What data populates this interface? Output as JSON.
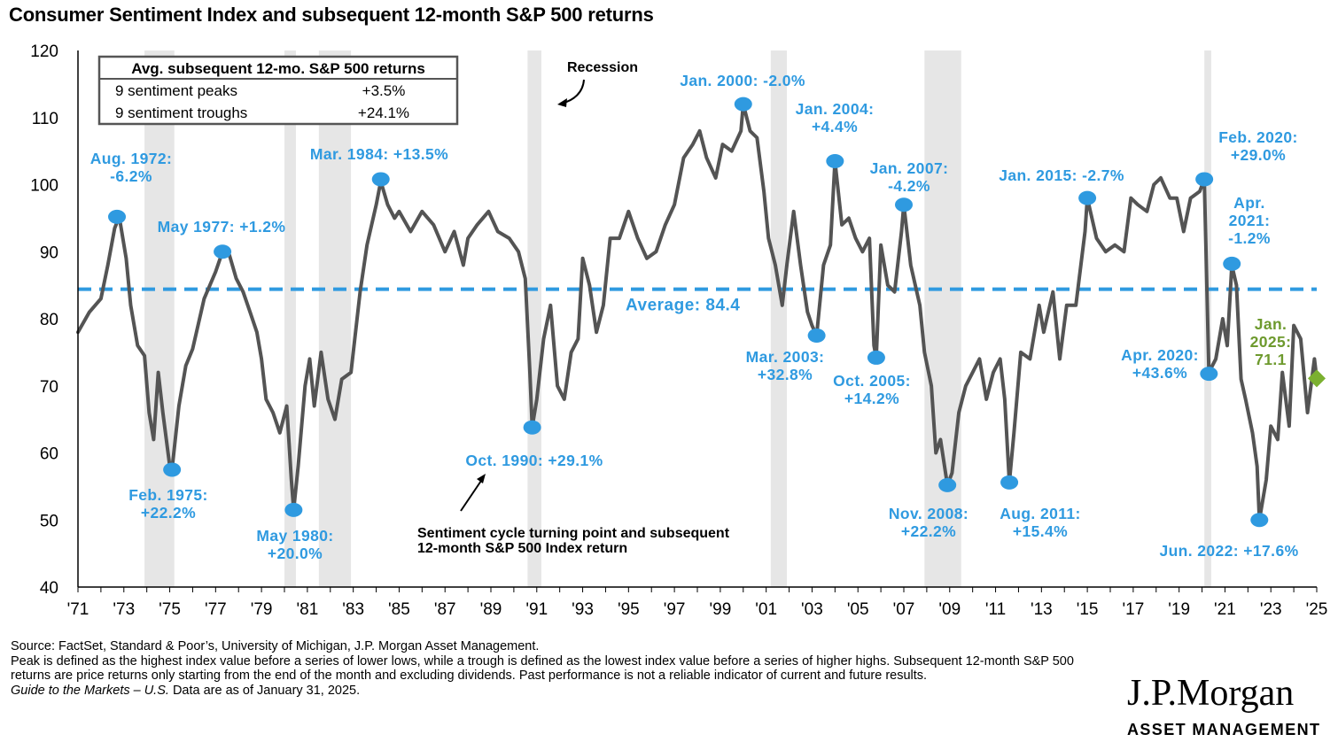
{
  "chart_data": {
    "type": "line",
    "title": "Consumer Sentiment Index and subsequent 12-month S&P 500 returns",
    "ylim": [
      40,
      120
    ],
    "yticks": [
      40,
      50,
      60,
      70,
      80,
      90,
      100,
      110,
      120
    ],
    "xlim": [
      1971.0,
      2025.0
    ],
    "xticks": [
      {
        "year": 1971,
        "label": "'71"
      },
      {
        "year": 1973,
        "label": "'73"
      },
      {
        "year": 1975,
        "label": "'75"
      },
      {
        "year": 1977,
        "label": "'77"
      },
      {
        "year": 1979,
        "label": "'79"
      },
      {
        "year": 1981,
        "label": "'81"
      },
      {
        "year": 1983,
        "label": "'83"
      },
      {
        "year": 1985,
        "label": "'85"
      },
      {
        "year": 1987,
        "label": "'87"
      },
      {
        "year": 1989,
        "label": "'89"
      },
      {
        "year": 1991,
        "label": "'91"
      },
      {
        "year": 1993,
        "label": "'93"
      },
      {
        "year": 1995,
        "label": "'95"
      },
      {
        "year": 1997,
        "label": "'97"
      },
      {
        "year": 1999,
        "label": "'99"
      },
      {
        "year": 2001,
        "label": "'01"
      },
      {
        "year": 2003,
        "label": "'03"
      },
      {
        "year": 2005,
        "label": "'05"
      },
      {
        "year": 2007,
        "label": "'07"
      },
      {
        "year": 2009,
        "label": "'09"
      },
      {
        "year": 2011,
        "label": "'11"
      },
      {
        "year": 2013,
        "label": "'13"
      },
      {
        "year": 2015,
        "label": "'15"
      },
      {
        "year": 2017,
        "label": "'17"
      },
      {
        "year": 2019,
        "label": "'19"
      },
      {
        "year": 2021,
        "label": "'21"
      },
      {
        "year": 2023,
        "label": "'23"
      },
      {
        "year": 2025,
        "label": "'25"
      }
    ],
    "average": 84.4,
    "average_label": "Average: 84.4",
    "recessions": [
      [
        1973.9,
        1975.2
      ],
      [
        1980.0,
        1980.5
      ],
      [
        1981.5,
        1982.9
      ],
      [
        1990.6,
        1991.2
      ],
      [
        2001.2,
        2001.9
      ],
      [
        2007.9,
        2009.5
      ],
      [
        2020.1,
        2020.4
      ]
    ],
    "series": [
      {
        "name": "Consumer Sentiment Index",
        "color": "#545454",
        "points": [
          [
            1971.0,
            78.0
          ],
          [
            1971.5,
            81.0
          ],
          [
            1972.0,
            83.0
          ],
          [
            1972.3,
            88.0
          ],
          [
            1972.6,
            93.5
          ],
          [
            1972.8,
            95.2
          ],
          [
            1973.1,
            89.0
          ],
          [
            1973.3,
            82.0
          ],
          [
            1973.6,
            76.0
          ],
          [
            1973.9,
            74.5
          ],
          [
            1974.1,
            66.0
          ],
          [
            1974.3,
            62.0
          ],
          [
            1974.5,
            72.0
          ],
          [
            1974.7,
            66.0
          ],
          [
            1975.0,
            58.0
          ],
          [
            1975.1,
            57.5
          ],
          [
            1975.4,
            67.0
          ],
          [
            1975.7,
            73.0
          ],
          [
            1976.0,
            75.5
          ],
          [
            1976.5,
            83.0
          ],
          [
            1977.0,
            87.0
          ],
          [
            1977.3,
            90.0
          ],
          [
            1977.6,
            89.5
          ],
          [
            1977.9,
            86.0
          ],
          [
            1978.2,
            84.0
          ],
          [
            1978.5,
            81.0
          ],
          [
            1978.8,
            78.0
          ],
          [
            1979.0,
            74.0
          ],
          [
            1979.2,
            68.0
          ],
          [
            1979.5,
            66.0
          ],
          [
            1979.8,
            63.0
          ],
          [
            1980.1,
            67.0
          ],
          [
            1980.3,
            56.0
          ],
          [
            1980.4,
            51.5
          ],
          [
            1980.6,
            58.0
          ],
          [
            1980.9,
            70.0
          ],
          [
            1981.1,
            74.0
          ],
          [
            1981.3,
            67.0
          ],
          [
            1981.6,
            75.0
          ],
          [
            1981.9,
            68.0
          ],
          [
            1982.2,
            65.0
          ],
          [
            1982.5,
            71.0
          ],
          [
            1982.9,
            72.0
          ],
          [
            1983.3,
            84.0
          ],
          [
            1983.6,
            91.0
          ],
          [
            1984.0,
            97.0
          ],
          [
            1984.2,
            100.5
          ],
          [
            1984.5,
            97.0
          ],
          [
            1984.8,
            95.0
          ],
          [
            1985.0,
            96.0
          ],
          [
            1985.5,
            93.0
          ],
          [
            1986.0,
            96.0
          ],
          [
            1986.5,
            94.0
          ],
          [
            1987.0,
            90.0
          ],
          [
            1987.4,
            93.0
          ],
          [
            1987.8,
            88.0
          ],
          [
            1988.0,
            92.0
          ],
          [
            1988.4,
            94.0
          ],
          [
            1988.9,
            96.0
          ],
          [
            1989.3,
            93.0
          ],
          [
            1989.8,
            92.0
          ],
          [
            1990.2,
            90.0
          ],
          [
            1990.5,
            86.0
          ],
          [
            1990.7,
            72.0
          ],
          [
            1990.8,
            63.8
          ],
          [
            1991.0,
            68.0
          ],
          [
            1991.3,
            77.0
          ],
          [
            1991.6,
            82.0
          ],
          [
            1991.9,
            70.0
          ],
          [
            1992.2,
            68.0
          ],
          [
            1992.5,
            75.0
          ],
          [
            1992.8,
            77.0
          ],
          [
            1993.0,
            89.0
          ],
          [
            1993.3,
            85.0
          ],
          [
            1993.6,
            78.0
          ],
          [
            1993.9,
            82.0
          ],
          [
            1994.2,
            92.0
          ],
          [
            1994.6,
            92.0
          ],
          [
            1995.0,
            96.0
          ],
          [
            1995.4,
            92.0
          ],
          [
            1995.8,
            89.0
          ],
          [
            1996.2,
            90.0
          ],
          [
            1996.6,
            94.0
          ],
          [
            1997.0,
            97.0
          ],
          [
            1997.4,
            104.0
          ],
          [
            1997.8,
            106.0
          ],
          [
            1998.1,
            108.0
          ],
          [
            1998.4,
            104.0
          ],
          [
            1998.8,
            101.0
          ],
          [
            1999.1,
            106.0
          ],
          [
            1999.5,
            105.0
          ],
          [
            1999.9,
            108.0
          ],
          [
            2000.0,
            112.0
          ],
          [
            2000.3,
            108.0
          ],
          [
            2000.6,
            107.0
          ],
          [
            2000.9,
            99.0
          ],
          [
            2001.1,
            92.0
          ],
          [
            2001.4,
            88.0
          ],
          [
            2001.7,
            82.0
          ],
          [
            2001.9,
            88.0
          ],
          [
            2002.2,
            96.0
          ],
          [
            2002.5,
            88.0
          ],
          [
            2002.8,
            81.0
          ],
          [
            2003.0,
            79.0
          ],
          [
            2003.2,
            77.5
          ],
          [
            2003.5,
            88.0
          ],
          [
            2003.8,
            91.0
          ],
          [
            2004.0,
            103.5
          ],
          [
            2004.3,
            94.0
          ],
          [
            2004.6,
            95.0
          ],
          [
            2004.9,
            92.0
          ],
          [
            2005.2,
            90.0
          ],
          [
            2005.5,
            92.0
          ],
          [
            2005.7,
            76.0
          ],
          [
            2005.8,
            74.2
          ],
          [
            2006.0,
            91.0
          ],
          [
            2006.3,
            85.0
          ],
          [
            2006.6,
            84.0
          ],
          [
            2006.9,
            93.0
          ],
          [
            2007.0,
            97.0
          ],
          [
            2007.3,
            88.0
          ],
          [
            2007.7,
            82.0
          ],
          [
            2007.9,
            75.0
          ],
          [
            2008.2,
            70.0
          ],
          [
            2008.4,
            60.0
          ],
          [
            2008.6,
            62.0
          ],
          [
            2008.9,
            55.2
          ],
          [
            2009.1,
            57.0
          ],
          [
            2009.4,
            66.0
          ],
          [
            2009.7,
            70.0
          ],
          [
            2010.0,
            72.0
          ],
          [
            2010.3,
            74.0
          ],
          [
            2010.6,
            68.0
          ],
          [
            2010.9,
            72.0
          ],
          [
            2011.2,
            74.0
          ],
          [
            2011.4,
            68.0
          ],
          [
            2011.6,
            55.6
          ],
          [
            2011.8,
            63.0
          ],
          [
            2012.1,
            75.0
          ],
          [
            2012.5,
            74.0
          ],
          [
            2012.9,
            82.0
          ],
          [
            2013.1,
            78.0
          ],
          [
            2013.5,
            84.0
          ],
          [
            2013.8,
            74.0
          ],
          [
            2014.1,
            82.0
          ],
          [
            2014.5,
            82.0
          ],
          [
            2014.9,
            93.0
          ],
          [
            2015.0,
            98.0
          ],
          [
            2015.4,
            92.0
          ],
          [
            2015.8,
            90.0
          ],
          [
            2016.2,
            91.0
          ],
          [
            2016.6,
            90.0
          ],
          [
            2016.9,
            98.0
          ],
          [
            2017.2,
            97.0
          ],
          [
            2017.6,
            96.0
          ],
          [
            2017.9,
            100.0
          ],
          [
            2018.2,
            101.0
          ],
          [
            2018.6,
            98.0
          ],
          [
            2018.9,
            98.0
          ],
          [
            2019.2,
            93.0
          ],
          [
            2019.5,
            98.0
          ],
          [
            2019.9,
            99.0
          ],
          [
            2020.1,
            100.8
          ],
          [
            2020.3,
            72.0
          ],
          [
            2020.6,
            74.0
          ],
          [
            2020.9,
            80.0
          ],
          [
            2021.1,
            76.0
          ],
          [
            2021.3,
            88.0
          ],
          [
            2021.5,
            85.0
          ],
          [
            2021.7,
            71.0
          ],
          [
            2021.9,
            68.0
          ],
          [
            2022.2,
            63.0
          ],
          [
            2022.4,
            58.0
          ],
          [
            2022.5,
            50.0
          ],
          [
            2022.8,
            56.0
          ],
          [
            2023.0,
            64.0
          ],
          [
            2023.3,
            62.0
          ],
          [
            2023.5,
            72.0
          ],
          [
            2023.8,
            64.0
          ],
          [
            2024.0,
            79.0
          ],
          [
            2024.3,
            77.0
          ],
          [
            2024.6,
            66.0
          ],
          [
            2024.9,
            74.0
          ],
          [
            2025.0,
            71.1
          ]
        ]
      }
    ],
    "annotations": [
      {
        "id": "aug-1972",
        "x": 1972.7,
        "y": 95.2,
        "kind": "peak",
        "lines": [
          "Aug. 1972:",
          "-6.2%"
        ]
      },
      {
        "id": "feb-1975",
        "x": 1975.1,
        "y": 57.5,
        "kind": "trough",
        "lines": [
          "Feb. 1975:",
          "+22.2%"
        ]
      },
      {
        "id": "may-1977",
        "x": 1977.3,
        "y": 90.0,
        "kind": "peak",
        "lines": [
          "May 1977: +1.2%"
        ]
      },
      {
        "id": "may-1980",
        "x": 1980.4,
        "y": 51.5,
        "kind": "trough",
        "lines": [
          "May 1980:",
          "+20.0%"
        ]
      },
      {
        "id": "mar-1984",
        "x": 1984.2,
        "y": 100.8,
        "kind": "peak",
        "lines": [
          "Mar. 1984: +13.5%"
        ]
      },
      {
        "id": "oct-1990",
        "x": 1990.8,
        "y": 63.8,
        "kind": "trough",
        "lines": [
          "Oct. 1990: +29.1%"
        ]
      },
      {
        "id": "jan-2000",
        "x": 2000.0,
        "y": 112.0,
        "kind": "peak",
        "lines": [
          "Jan. 2000: -2.0%"
        ]
      },
      {
        "id": "mar-2003",
        "x": 2003.2,
        "y": 77.5,
        "kind": "trough",
        "lines": [
          "Mar. 2003:",
          "+32.8%"
        ]
      },
      {
        "id": "jan-2004",
        "x": 2004.0,
        "y": 103.5,
        "kind": "peak",
        "lines": [
          "Jan. 2004:",
          "+4.4%"
        ]
      },
      {
        "id": "oct-2005",
        "x": 2005.8,
        "y": 74.2,
        "kind": "trough",
        "lines": [
          "Oct. 2005:",
          "+14.2%"
        ]
      },
      {
        "id": "jan-2007",
        "x": 2007.0,
        "y": 97.0,
        "kind": "peak",
        "lines": [
          "Jan. 2007:",
          "-4.2%"
        ]
      },
      {
        "id": "nov-2008",
        "x": 2008.9,
        "y": 55.2,
        "kind": "trough",
        "lines": [
          "Nov. 2008:",
          "+22.2%"
        ]
      },
      {
        "id": "aug-2011",
        "x": 2011.6,
        "y": 55.6,
        "kind": "trough",
        "lines": [
          "Aug. 2011:",
          "+15.4%"
        ]
      },
      {
        "id": "jan-2015",
        "x": 2015.0,
        "y": 98.0,
        "kind": "peak",
        "lines": [
          "Jan. 2015: -2.7%"
        ]
      },
      {
        "id": "feb-2020",
        "x": 2020.1,
        "y": 100.8,
        "kind": "peak",
        "lines": [
          "Feb. 2020:",
          "+29.0%"
        ]
      },
      {
        "id": "apr-2020",
        "x": 2020.3,
        "y": 71.8,
        "kind": "trough",
        "lines": [
          "Apr. 2020:",
          "+43.6%"
        ]
      },
      {
        "id": "apr-2021",
        "x": 2021.3,
        "y": 88.2,
        "kind": "peak",
        "lines": [
          "Apr.",
          "2021:",
          "-1.2%"
        ]
      },
      {
        "id": "jun-2022",
        "x": 2022.5,
        "y": 50.0,
        "kind": "trough",
        "lines": [
          "Jun. 2022: +17.6%"
        ]
      },
      {
        "id": "jan-2025",
        "x": 2025.0,
        "y": 71.1,
        "kind": "latest",
        "lines": [
          "Jan.",
          "2025:",
          "71.1"
        ]
      }
    ],
    "legend_box": {
      "header": "Avg. subsequent 12-mo. S&P 500 returns",
      "rows": [
        {
          "label": "9 sentiment peaks",
          "value": "+3.5%"
        },
        {
          "label": "9 sentiment troughs",
          "value": "+24.1%"
        }
      ]
    },
    "recession_label": "Recession",
    "turning_point_note": [
      "Sentiment cycle turning point and subsequent",
      "12-month S&P 500 Index return"
    ],
    "colors": {
      "line": "#545454",
      "marker": "#2f9ae0",
      "label": "#2f9ae0",
      "latest": "#7bb030",
      "latest_label": "#6e9a2e",
      "recession": "#e6e6e6",
      "average": "#2f9ae0"
    }
  },
  "footnotes": {
    "source": "Source: FactSet, Standard & Poor’s, University of Michigan, J.P. Morgan Asset Management.",
    "definition": "Peak is defined as the highest index value before a series of lower lows, while a trough is defined as the lowest index value before a series of higher highs. Subsequent 12-month S&P 500 returns are price returns only starting from the end of the month and excluding dividends. Past performance is not a reliable indicator of current and future results.",
    "guide_italic": "Guide to the Markets – U.S.",
    "data_date": " Data are as of January 31, 2025."
  },
  "logo": {
    "name": "J.P.Morgan",
    "subtitle": "ASSET MANAGEMENT"
  }
}
